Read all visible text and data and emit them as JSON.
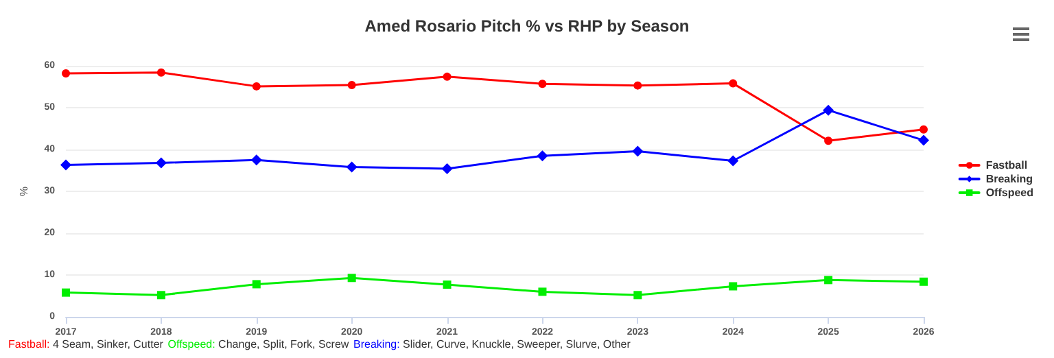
{
  "chart_data": {
    "type": "line",
    "title": "Amed Rosario Pitch % vs RHP by Season",
    "ylabel": "%",
    "categories": [
      "2017",
      "2018",
      "2019",
      "2020",
      "2021",
      "2022",
      "2023",
      "2024",
      "2025",
      "2026"
    ],
    "series": [
      {
        "name": "Fastball",
        "color": "#ff0000",
        "marker": "circle",
        "values": [
          58.2,
          58.4,
          55.1,
          55.4,
          57.4,
          55.7,
          55.3,
          55.8,
          42.1,
          44.8
        ]
      },
      {
        "name": "Breaking",
        "color": "#0000ff",
        "marker": "diamond",
        "values": [
          36.3,
          36.8,
          37.5,
          35.8,
          35.4,
          38.5,
          39.6,
          37.3,
          49.4,
          42.2
        ]
      },
      {
        "name": "Offspeed",
        "color": "#00ee00",
        "marker": "square",
        "values": [
          5.8,
          5.2,
          7.8,
          9.3,
          7.7,
          6.0,
          5.2,
          7.3,
          8.8,
          8.4
        ]
      }
    ],
    "ylim": [
      0,
      60
    ],
    "yticks": [
      0,
      10,
      20,
      30,
      40,
      50,
      60
    ],
    "grid": "y",
    "legend": "right",
    "annotations": [
      "Fastball: 4 Seam, Sinker, Cutter",
      "Offspeed: Change, Split, Fork, Screw",
      "Breaking: Slider, Curve, Knuckle, Sweeper, Slurve, Other"
    ]
  }
}
